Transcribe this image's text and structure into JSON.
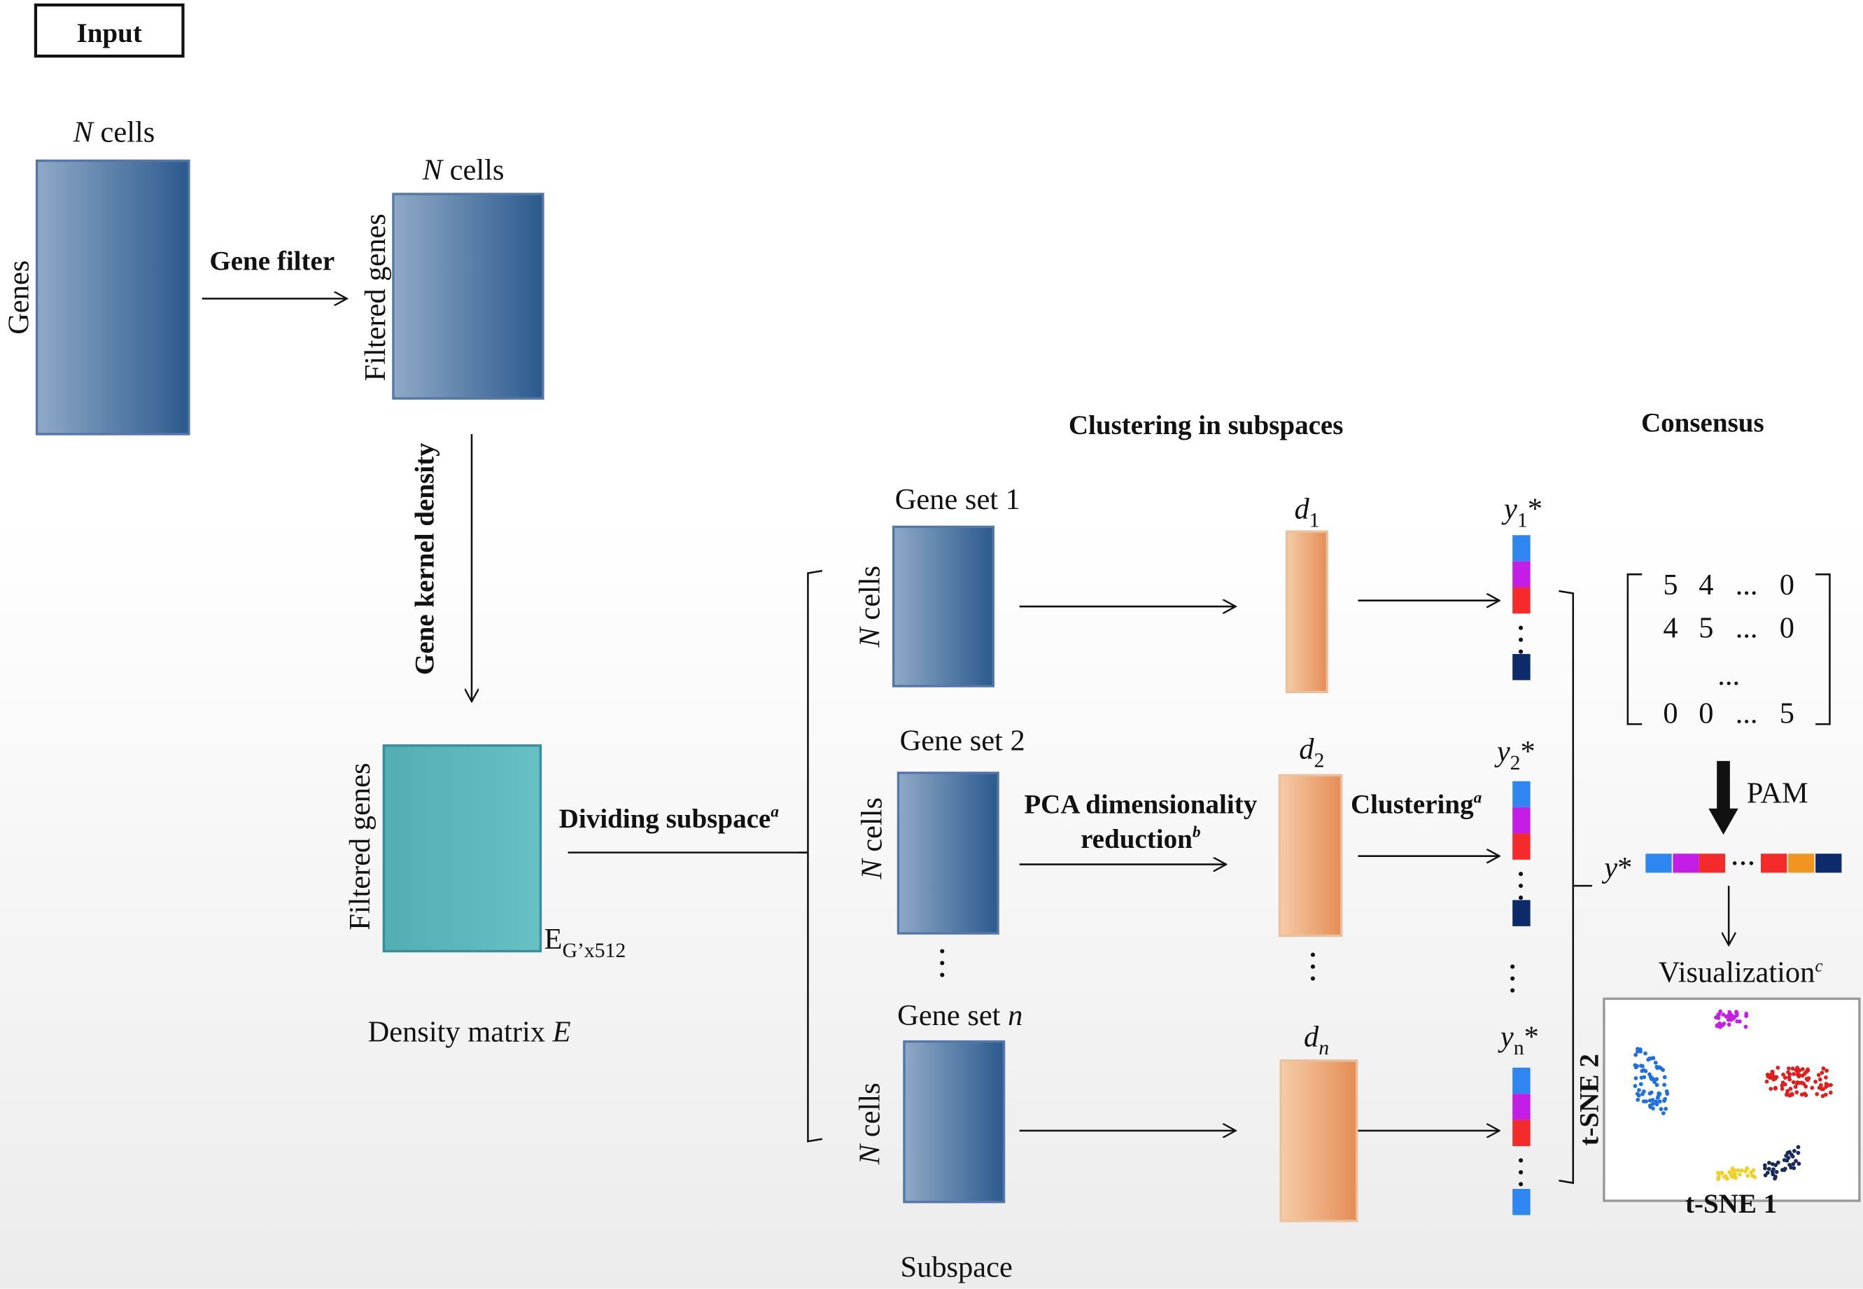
{
  "header": {
    "title": "Input"
  },
  "input_matrix": {
    "top_label": {
      "italic": "N",
      "text": " cells"
    },
    "side_label": "Genes"
  },
  "gene_filter": "Gene filter",
  "filtered_matrix": {
    "top_label": {
      "italic": "N",
      "text": " cells"
    },
    "side_label": "Filtered genes"
  },
  "kernel_density": "Gene kernel density",
  "density_matrix": {
    "side_label": "Filtered genes",
    "dim_label": {
      "text": "E",
      "sub": "G’x512"
    },
    "caption": {
      "text": "Density matrix ",
      "italic": "E"
    }
  },
  "dividing": {
    "text": "Dividing subspace",
    "sup": "a"
  },
  "sections": {
    "clustering": "Clustering in subspaces",
    "consensus": "Consensus"
  },
  "subspaces": [
    {
      "gene_set": {
        "text": "Gene set 1"
      },
      "side_label": {
        "italic": "N",
        "text": " cells"
      },
      "d": {
        "italic": "d",
        "sub": "1"
      },
      "y": {
        "italic": "y",
        "sub": "1",
        "text": "*"
      }
    },
    {
      "gene_set": {
        "text": "Gene set 2"
      },
      "side_label": {
        "italic": "N",
        "text": " cells"
      },
      "d": {
        "italic": "d",
        "sub": "2"
      },
      "y": {
        "italic": "y",
        "sub": "2",
        "text": "*"
      }
    },
    {
      "gene_set": {
        "text": "Gene set ",
        "italic": "n"
      },
      "side_label": {
        "italic": "N",
        "text": " cells"
      },
      "d": {
        "italic": "d",
        "sub": "n"
      },
      "y": {
        "italic": "y",
        "sub": "n",
        "text": "*"
      }
    }
  ],
  "pca": {
    "line1": "PCA dimensionality",
    "line2": "reduction",
    "sup": "b"
  },
  "clustering": {
    "text": "Clustering",
    "sup": "a"
  },
  "consensus_matrix": {
    "rows": [
      [
        "5",
        "4",
        "...",
        "0"
      ],
      [
        "4",
        "5",
        "...",
        "0"
      ],
      [
        "..."
      ],
      [
        "0",
        "0",
        "...",
        "5"
      ]
    ]
  },
  "pam": "PAM",
  "y_star": {
    "italic": "y",
    "text": "*"
  },
  "visualization": {
    "text": "Visualization",
    "sup": "c"
  },
  "plot": {
    "x_label": "t-SNE 1",
    "y_label": "t-SNE 2"
  },
  "subspace_caption": "Subspace"
}
